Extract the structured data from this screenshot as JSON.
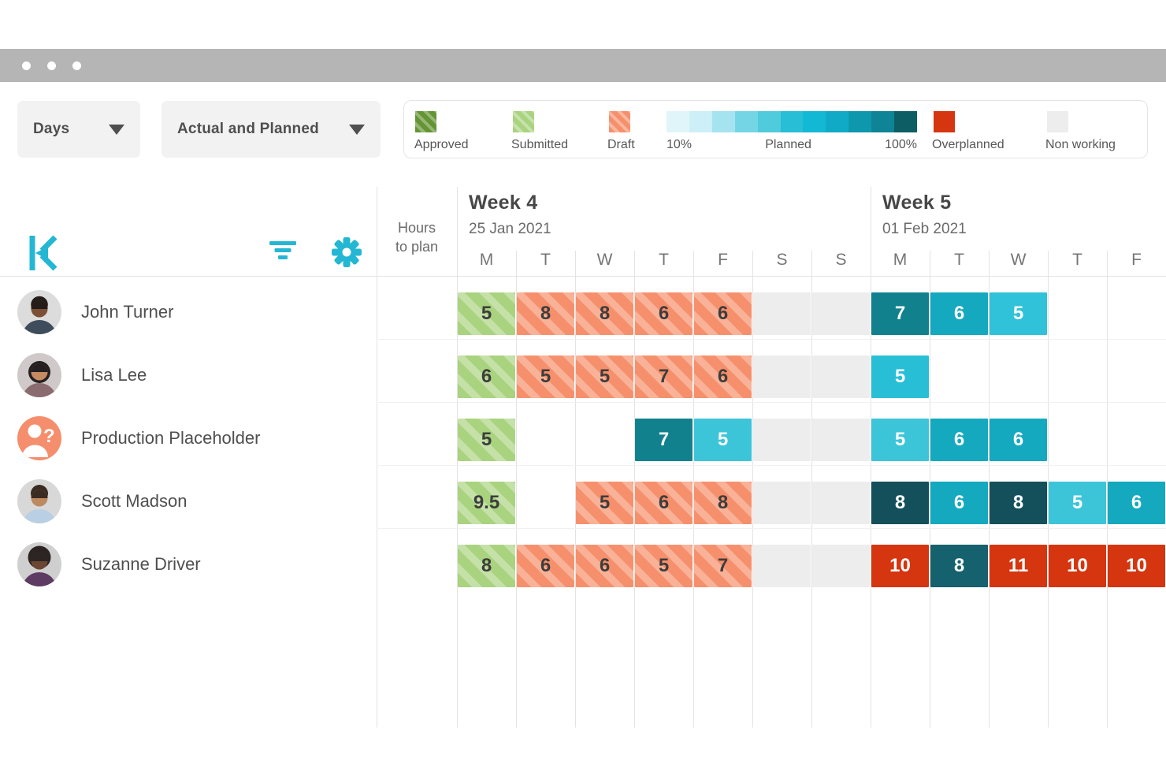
{
  "toolbar": {
    "view_dropdown": {
      "value": "Days"
    },
    "mode_dropdown": {
      "value": "Actual and Planned"
    }
  },
  "legend": {
    "approved": {
      "label": "Approved"
    },
    "submitted": {
      "label": "Submitted"
    },
    "draft": {
      "label": "Draft"
    },
    "planned": {
      "start_label": "10%",
      "mid_label": "Planned",
      "end_label": "100%",
      "gradient": [
        "#e0f5fa",
        "#cdeff7",
        "#a6e3f0",
        "#74d5e5",
        "#4fcbdd",
        "#27bed6",
        "#13b8d4",
        "#10aac7",
        "#0f97ae",
        "#0f8496",
        "#0c5e64"
      ]
    },
    "overplanned": {
      "label": "Overplanned",
      "color": "#d5350f"
    },
    "nonworking": {
      "label": "Non working",
      "color": "#ededed"
    }
  },
  "icons": {
    "logo": "kelloo-arrow-k",
    "filter": "filter-lines",
    "settings": "gear",
    "dropdown_caret": "chevron-down",
    "placeholder_avatar": "person-question"
  },
  "timeline": {
    "hours_to_plan_label": [
      "Hours",
      "to plan"
    ],
    "weeks": [
      {
        "label": "Week 4",
        "date": "25 Jan 2021",
        "days": [
          "M",
          "T",
          "W",
          "T",
          "F",
          "S",
          "S"
        ]
      },
      {
        "label": "Week 5",
        "date": "01 Feb 2021",
        "days": [
          "M",
          "T",
          "W",
          "T",
          "F"
        ]
      }
    ]
  },
  "colors": {
    "accent": "#24b7d3",
    "approved": "#649433",
    "submitted": "#a9d37f",
    "draft": "#f6906c",
    "overplanned": "#d5350f",
    "nonworking": "#ededed",
    "cell_dark_text": "#3d3d3d"
  },
  "resources": [
    {
      "name": "John Turner",
      "avatar": {
        "kind": "photo",
        "bg": "#dcdcdc",
        "skin": "#7d4f35",
        "hair": "#241c18",
        "shirt": "#3f4c5c",
        "hairR": 10.8,
        "hairY": 18.5
      },
      "cells": [
        {
          "v": "5",
          "kind": "submitted"
        },
        {
          "v": "8",
          "kind": "draft"
        },
        {
          "v": "8",
          "kind": "draft"
        },
        {
          "v": "6",
          "kind": "draft"
        },
        {
          "v": "6",
          "kind": "draft"
        },
        {
          "kind": "nonworking"
        },
        {
          "kind": "nonworking"
        },
        {
          "v": "7",
          "kind": "planned",
          "bg": "#11818e"
        },
        {
          "v": "6",
          "kind": "planned",
          "bg": "#15a9bf"
        },
        {
          "v": "5",
          "kind": "planned",
          "bg": "#30c2d8"
        },
        {
          "kind": "empty"
        },
        {
          "kind": "empty"
        }
      ]
    },
    {
      "name": "Lisa Lee",
      "avatar": {
        "kind": "photo",
        "bg": "#cfc9c9",
        "skin": "#c68a62",
        "hair": "#241f20",
        "shirt": "#8a6b70",
        "hairR": 14,
        "hairY": 24
      },
      "cells": [
        {
          "v": "6",
          "kind": "submitted"
        },
        {
          "v": "5",
          "kind": "draft"
        },
        {
          "v": "5",
          "kind": "draft"
        },
        {
          "v": "7",
          "kind": "draft"
        },
        {
          "v": "6",
          "kind": "draft"
        },
        {
          "kind": "nonworking"
        },
        {
          "kind": "nonworking"
        },
        {
          "v": "5",
          "kind": "planned",
          "bg": "#28bfd6"
        },
        {
          "kind": "empty"
        },
        {
          "kind": "empty"
        },
        {
          "kind": "empty"
        },
        {
          "kind": "empty"
        }
      ]
    },
    {
      "name": "Production Placeholder",
      "avatar": {
        "kind": "placeholder",
        "bg": "#f58e6d"
      },
      "cells": [
        {
          "v": "5",
          "kind": "submitted"
        },
        {
          "kind": "empty"
        },
        {
          "kind": "empty"
        },
        {
          "v": "7",
          "kind": "planned",
          "bg": "#11818e"
        },
        {
          "v": "5",
          "kind": "planned",
          "bg": "#3cc5d9"
        },
        {
          "kind": "nonworking"
        },
        {
          "kind": "nonworking"
        },
        {
          "v": "5",
          "kind": "planned",
          "bg": "#3cc5d9"
        },
        {
          "v": "6",
          "kind": "planned",
          "bg": "#15a9bf"
        },
        {
          "v": "6",
          "kind": "planned",
          "bg": "#15a9bf"
        },
        {
          "kind": "empty"
        },
        {
          "kind": "empty"
        }
      ]
    },
    {
      "name": "Scott Madson",
      "avatar": {
        "kind": "photo",
        "bg": "#d8d8d8",
        "skin": "#bd8a60",
        "hair": "#3b2c22",
        "shirt": "#b9cfe3",
        "hairR": 11,
        "hairY": 18
      },
      "cells": [
        {
          "v": "9.5",
          "kind": "submitted"
        },
        {
          "kind": "empty"
        },
        {
          "v": "5",
          "kind": "draft"
        },
        {
          "v": "6",
          "kind": "draft"
        },
        {
          "v": "8",
          "kind": "draft"
        },
        {
          "kind": "nonworking"
        },
        {
          "kind": "nonworking"
        },
        {
          "v": "8",
          "kind": "planned",
          "bg": "#14505b"
        },
        {
          "v": "6",
          "kind": "planned",
          "bg": "#15a9bf"
        },
        {
          "v": "8",
          "kind": "planned",
          "bg": "#14505b"
        },
        {
          "v": "5",
          "kind": "planned",
          "bg": "#3cc5d9"
        },
        {
          "v": "6",
          "kind": "planned",
          "bg": "#15a9bf"
        }
      ]
    },
    {
      "name": "Suzanne Driver",
      "avatar": {
        "kind": "photo",
        "bg": "#cfcfcf",
        "skin": "#6b4632",
        "hair": "#2c2422",
        "shirt": "#5d3b63",
        "hairR": 14.5,
        "hairY": 19
      },
      "cells": [
        {
          "v": "8",
          "kind": "submitted"
        },
        {
          "v": "6",
          "kind": "draft"
        },
        {
          "v": "6",
          "kind": "draft"
        },
        {
          "v": "5",
          "kind": "draft"
        },
        {
          "v": "7",
          "kind": "draft"
        },
        {
          "kind": "nonworking"
        },
        {
          "kind": "nonworking"
        },
        {
          "v": "10",
          "kind": "overplanned"
        },
        {
          "v": "8",
          "kind": "planned",
          "bg": "#15616e"
        },
        {
          "v": "11",
          "kind": "overplanned"
        },
        {
          "v": "10",
          "kind": "overplanned"
        },
        {
          "v": "10",
          "kind": "overplanned"
        }
      ]
    }
  ]
}
